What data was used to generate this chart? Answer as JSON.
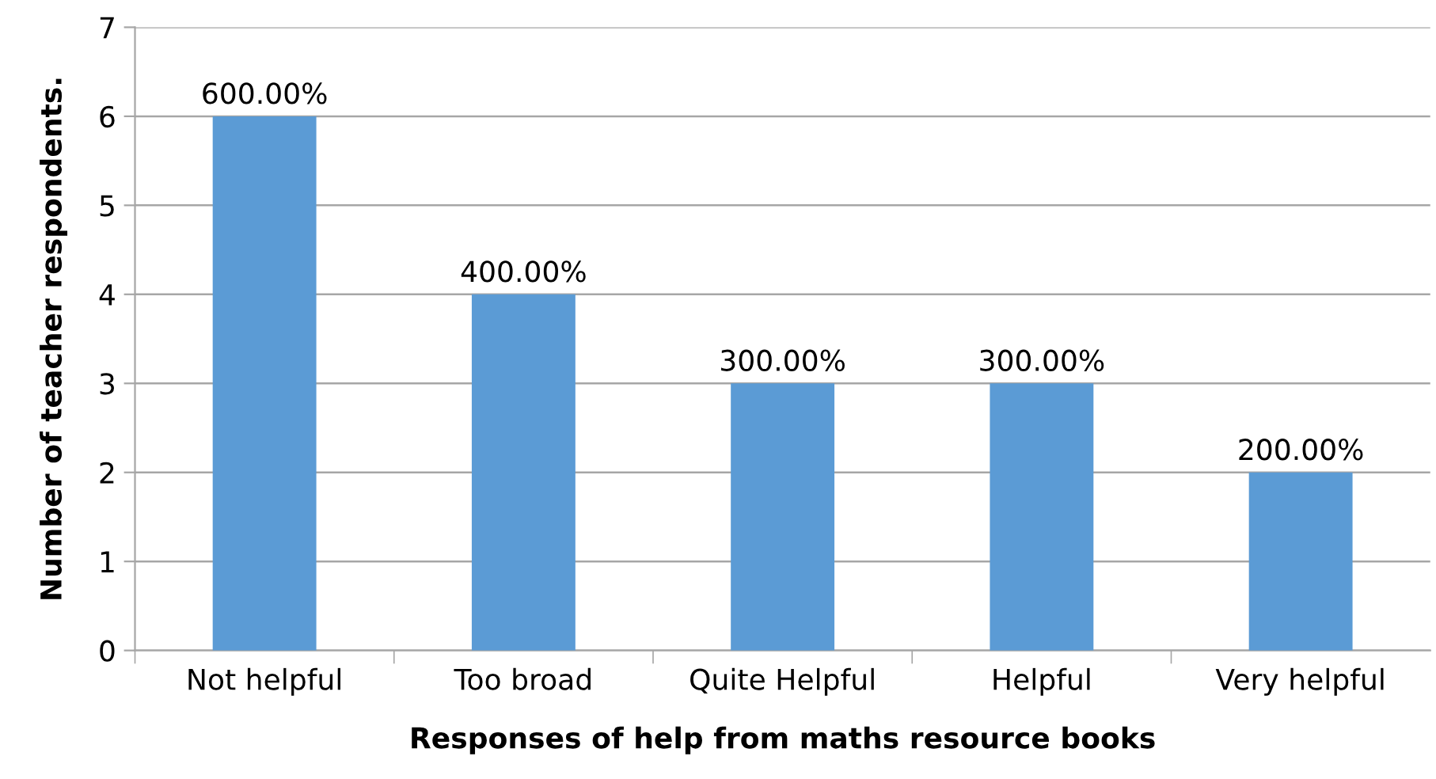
{
  "chart_data": {
    "type": "bar",
    "xlabel": "Responses of help from maths resource books",
    "ylabel": "Number of teacher respondents.",
    "categories": [
      "Not helpful",
      "Too broad",
      "Quite Helpful",
      "Helpful",
      "Very helpful"
    ],
    "values": [
      6,
      4,
      3,
      3,
      2
    ],
    "value_labels": [
      "600.00%",
      "400.00%",
      "300.00%",
      "300.00%",
      "200.00%"
    ],
    "color": "#5b9bd5",
    "ylim": [
      0,
      7
    ],
    "yticks": [
      0,
      1,
      2,
      3,
      4,
      5,
      6,
      7
    ],
    "grid": "y",
    "legend": false
  }
}
